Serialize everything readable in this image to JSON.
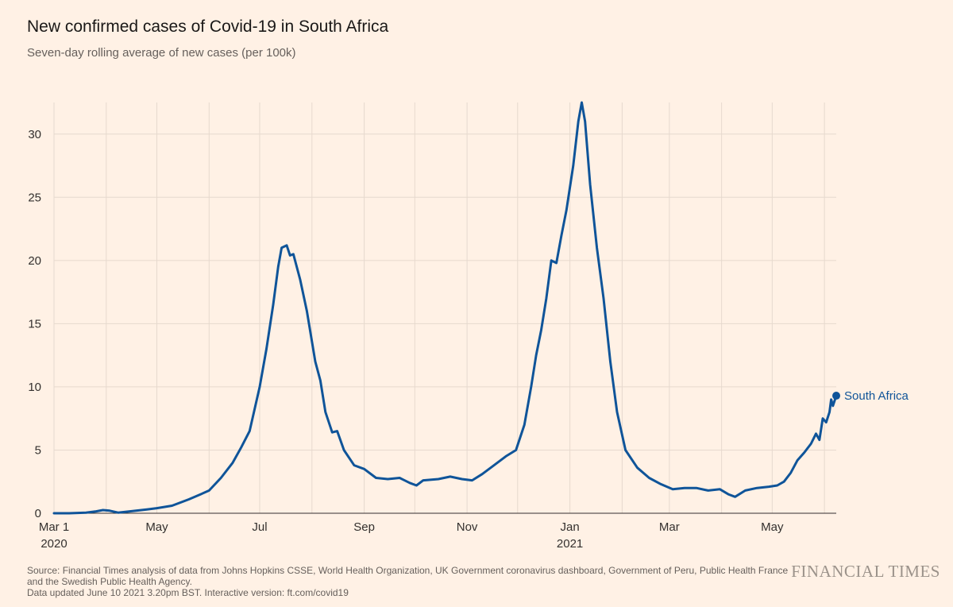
{
  "header": {
    "title": "New confirmed cases of Covid-19 in South Africa",
    "subtitle": "Seven-day rolling average of new cases (per 100k)"
  },
  "footer": {
    "source_line1": "Source: Financial Times analysis of data from Johns Hopkins CSSE, World Health Organization, UK Government coronavirus dashboard, Government of Peru, Public Health France",
    "source_line2": "and the Swedish Public Health Agency.",
    "updated": "Data updated June 10 2021 3.20pm BST. Interactive version: ft.com/covid19"
  },
  "brand": {
    "logo_text": "FINANCIAL TIMES"
  },
  "colors": {
    "background": "#fff1e5",
    "line": "#0f5499",
    "grid": "#e6d9ce",
    "text": "#33302e"
  },
  "chart_data": {
    "type": "line",
    "title": "New confirmed cases of Covid-19 in South Africa",
    "subtitle": "Seven-day rolling average of new cases (per 100k)",
    "xlabel": "",
    "ylabel": "",
    "x_type": "date",
    "xlim": [
      "2020-03-01",
      "2021-06-08"
    ],
    "ylim": [
      0,
      32.5
    ],
    "yticks": [
      0,
      5,
      10,
      15,
      20,
      25,
      30
    ],
    "x_ticks": [
      {
        "date": "2020-03-01",
        "label": "Mar 1",
        "sublabel": "2020"
      },
      {
        "date": "2020-05-01",
        "label": "May",
        "sublabel": ""
      },
      {
        "date": "2020-07-01",
        "label": "Jul",
        "sublabel": ""
      },
      {
        "date": "2020-09-01",
        "label": "Sep",
        "sublabel": ""
      },
      {
        "date": "2020-11-01",
        "label": "Nov",
        "sublabel": ""
      },
      {
        "date": "2021-01-01",
        "label": "Jan",
        "sublabel": "2021"
      },
      {
        "date": "2021-03-01",
        "label": "Mar",
        "sublabel": ""
      },
      {
        "date": "2021-05-01",
        "label": "May",
        "sublabel": ""
      }
    ],
    "grid": true,
    "gridline_dates": [
      "2020-03-01",
      "2020-04-01",
      "2020-05-01",
      "2020-06-01",
      "2020-07-01",
      "2020-08-01",
      "2020-09-01",
      "2020-10-01",
      "2020-11-01",
      "2020-12-01",
      "2021-01-01",
      "2021-02-01",
      "2021-03-01",
      "2021-04-01",
      "2021-05-01",
      "2021-06-01"
    ],
    "legend": "end-of-line label",
    "series": [
      {
        "name": "South Africa",
        "color": "#0f5499",
        "points": [
          {
            "x": "2020-03-01",
            "y": 0.0
          },
          {
            "x": "2020-03-10",
            "y": 0.0
          },
          {
            "x": "2020-03-20",
            "y": 0.05
          },
          {
            "x": "2020-03-26",
            "y": 0.15
          },
          {
            "x": "2020-03-30",
            "y": 0.25
          },
          {
            "x": "2020-04-03",
            "y": 0.2
          },
          {
            "x": "2020-04-08",
            "y": 0.05
          },
          {
            "x": "2020-04-15",
            "y": 0.15
          },
          {
            "x": "2020-04-25",
            "y": 0.3
          },
          {
            "x": "2020-05-01",
            "y": 0.4
          },
          {
            "x": "2020-05-10",
            "y": 0.6
          },
          {
            "x": "2020-05-20",
            "y": 1.1
          },
          {
            "x": "2020-05-27",
            "y": 1.5
          },
          {
            "x": "2020-06-01",
            "y": 1.8
          },
          {
            "x": "2020-06-08",
            "y": 2.8
          },
          {
            "x": "2020-06-15",
            "y": 4.0
          },
          {
            "x": "2020-06-20",
            "y": 5.2
          },
          {
            "x": "2020-06-25",
            "y": 6.5
          },
          {
            "x": "2020-07-01",
            "y": 10.0
          },
          {
            "x": "2020-07-05",
            "y": 13.0
          },
          {
            "x": "2020-07-09",
            "y": 16.5
          },
          {
            "x": "2020-07-12",
            "y": 19.5
          },
          {
            "x": "2020-07-14",
            "y": 21.0
          },
          {
            "x": "2020-07-17",
            "y": 21.2
          },
          {
            "x": "2020-07-19",
            "y": 20.4
          },
          {
            "x": "2020-07-21",
            "y": 20.5
          },
          {
            "x": "2020-07-25",
            "y": 18.5
          },
          {
            "x": "2020-07-29",
            "y": 16.0
          },
          {
            "x": "2020-08-03",
            "y": 12.0
          },
          {
            "x": "2020-08-06",
            "y": 10.5
          },
          {
            "x": "2020-08-09",
            "y": 8.0
          },
          {
            "x": "2020-08-13",
            "y": 6.4
          },
          {
            "x": "2020-08-16",
            "y": 6.5
          },
          {
            "x": "2020-08-20",
            "y": 5.0
          },
          {
            "x": "2020-08-26",
            "y": 3.8
          },
          {
            "x": "2020-09-01",
            "y": 3.5
          },
          {
            "x": "2020-09-08",
            "y": 2.8
          },
          {
            "x": "2020-09-15",
            "y": 2.7
          },
          {
            "x": "2020-09-22",
            "y": 2.8
          },
          {
            "x": "2020-09-28",
            "y": 2.4
          },
          {
            "x": "2020-10-02",
            "y": 2.2
          },
          {
            "x": "2020-10-06",
            "y": 2.6
          },
          {
            "x": "2020-10-15",
            "y": 2.7
          },
          {
            "x": "2020-10-22",
            "y": 2.9
          },
          {
            "x": "2020-10-29",
            "y": 2.7
          },
          {
            "x": "2020-11-04",
            "y": 2.6
          },
          {
            "x": "2020-11-10",
            "y": 3.1
          },
          {
            "x": "2020-11-17",
            "y": 3.8
          },
          {
            "x": "2020-11-24",
            "y": 4.5
          },
          {
            "x": "2020-11-30",
            "y": 5.0
          },
          {
            "x": "2020-12-05",
            "y": 7.0
          },
          {
            "x": "2020-12-09",
            "y": 10.0
          },
          {
            "x": "2020-12-12",
            "y": 12.5
          },
          {
            "x": "2020-12-15",
            "y": 14.5
          },
          {
            "x": "2020-12-18",
            "y": 17.0
          },
          {
            "x": "2020-12-21",
            "y": 20.0
          },
          {
            "x": "2020-12-24",
            "y": 19.8
          },
          {
            "x": "2020-12-27",
            "y": 22.0
          },
          {
            "x": "2020-12-30",
            "y": 24.0
          },
          {
            "x": "2021-01-03",
            "y": 27.5
          },
          {
            "x": "2021-01-06",
            "y": 31.0
          },
          {
            "x": "2021-01-08",
            "y": 32.5
          },
          {
            "x": "2021-01-10",
            "y": 31.0
          },
          {
            "x": "2021-01-13",
            "y": 26.0
          },
          {
            "x": "2021-01-17",
            "y": 21.0
          },
          {
            "x": "2021-01-21",
            "y": 17.0
          },
          {
            "x": "2021-01-25",
            "y": 12.0
          },
          {
            "x": "2021-01-29",
            "y": 8.0
          },
          {
            "x": "2021-02-03",
            "y": 5.0
          },
          {
            "x": "2021-02-10",
            "y": 3.6
          },
          {
            "x": "2021-02-17",
            "y": 2.8
          },
          {
            "x": "2021-02-24",
            "y": 2.3
          },
          {
            "x": "2021-03-03",
            "y": 1.9
          },
          {
            "x": "2021-03-10",
            "y": 2.0
          },
          {
            "x": "2021-03-17",
            "y": 2.0
          },
          {
            "x": "2021-03-24",
            "y": 1.8
          },
          {
            "x": "2021-03-31",
            "y": 1.9
          },
          {
            "x": "2021-04-05",
            "y": 1.5
          },
          {
            "x": "2021-04-09",
            "y": 1.3
          },
          {
            "x": "2021-04-15",
            "y": 1.8
          },
          {
            "x": "2021-04-22",
            "y": 2.0
          },
          {
            "x": "2021-04-29",
            "y": 2.1
          },
          {
            "x": "2021-05-04",
            "y": 2.2
          },
          {
            "x": "2021-05-08",
            "y": 2.5
          },
          {
            "x": "2021-05-12",
            "y": 3.2
          },
          {
            "x": "2021-05-16",
            "y": 4.2
          },
          {
            "x": "2021-05-20",
            "y": 4.8
          },
          {
            "x": "2021-05-24",
            "y": 5.5
          },
          {
            "x": "2021-05-27",
            "y": 6.3
          },
          {
            "x": "2021-05-29",
            "y": 5.8
          },
          {
            "x": "2021-05-31",
            "y": 7.5
          },
          {
            "x": "2021-06-02",
            "y": 7.2
          },
          {
            "x": "2021-06-04",
            "y": 8.0
          },
          {
            "x": "2021-06-05",
            "y": 9.0
          },
          {
            "x": "2021-06-06",
            "y": 8.5
          },
          {
            "x": "2021-06-08",
            "y": 9.3
          }
        ]
      }
    ]
  }
}
